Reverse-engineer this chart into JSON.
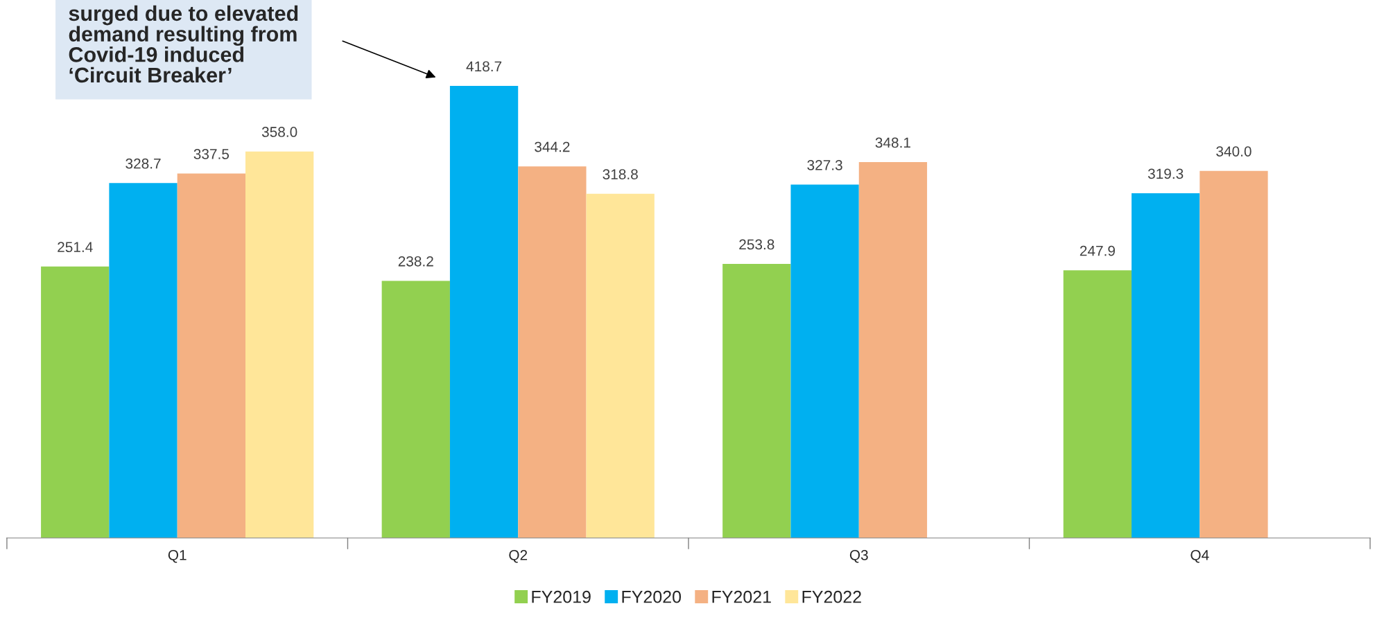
{
  "chart_data": {
    "type": "bar",
    "categories": [
      "Q1",
      "Q2",
      "Q3",
      "Q4"
    ],
    "series": [
      {
        "name": "FY2019",
        "color": "#92d050",
        "values": [
          251.4,
          238.2,
          253.8,
          247.9
        ],
        "value_labels": [
          "251.4",
          "238.2",
          "253.8",
          "247.9"
        ]
      },
      {
        "name": "FY2020",
        "color": "#00b0f0",
        "values": [
          328.7,
          418.7,
          327.3,
          319.3
        ],
        "value_labels": [
          "328.7",
          "418.7",
          "327.3",
          "319.3"
        ]
      },
      {
        "name": "FY2021",
        "color": "#f4b183",
        "values": [
          337.5,
          344.2,
          348.1,
          340.0
        ],
        "value_labels": [
          "337.5",
          "344.2",
          "348.1",
          "340.0"
        ]
      },
      {
        "name": "FY2022",
        "color": "#ffe699",
        "values": [
          358.0,
          318.8,
          null,
          null
        ],
        "value_labels": [
          "358.0",
          "318.8",
          null,
          null
        ]
      }
    ],
    "legend": "bottom",
    "grid": false,
    "annotations": [
      "surged due to elevated\ndemand resulting from\nCovid-19 induced\n‘Circuit Breaker’"
    ]
  }
}
